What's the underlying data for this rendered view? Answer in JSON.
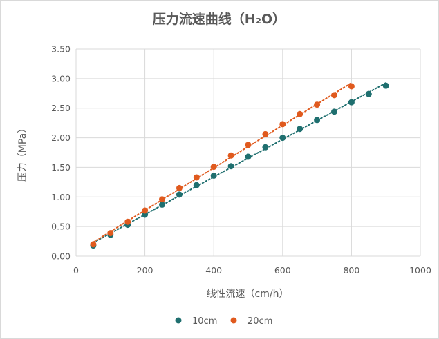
{
  "chart_data": {
    "type": "scatter",
    "title": "压力流速曲线（H₂O）",
    "xlabel": "线性流速（cm/h）",
    "ylabel": "压力（MPa）",
    "xlim": [
      0,
      1000
    ],
    "ylim": [
      0,
      3.5
    ],
    "x_ticks": [
      "0",
      "200",
      "400",
      "600",
      "800",
      "1000"
    ],
    "y_ticks": [
      "0.00",
      "0.50",
      "1.00",
      "1.50",
      "2.00",
      "2.50",
      "3.00",
      "3.50"
    ],
    "grid": true,
    "legend_position": "bottom",
    "trendline": "linear, dotted",
    "series": [
      {
        "name": "10cm",
        "color": "#1f6f6f",
        "x": [
          50,
          100,
          150,
          200,
          250,
          300,
          350,
          400,
          450,
          500,
          550,
          600,
          650,
          700,
          750,
          800,
          850,
          900
        ],
        "y": [
          0.18,
          0.36,
          0.53,
          0.7,
          0.87,
          1.04,
          1.2,
          1.36,
          1.52,
          1.68,
          1.84,
          2.0,
          2.15,
          2.3,
          2.44,
          2.6,
          2.74,
          2.88
        ]
      },
      {
        "name": "20cm",
        "color": "#e05a1e",
        "x": [
          50,
          100,
          150,
          200,
          250,
          300,
          350,
          400,
          450,
          500,
          550,
          600,
          650,
          700,
          750,
          800
        ],
        "y": [
          0.2,
          0.39,
          0.58,
          0.77,
          0.96,
          1.15,
          1.33,
          1.51,
          1.7,
          1.88,
          2.06,
          2.23,
          2.4,
          2.56,
          2.72,
          2.87
        ]
      }
    ]
  }
}
